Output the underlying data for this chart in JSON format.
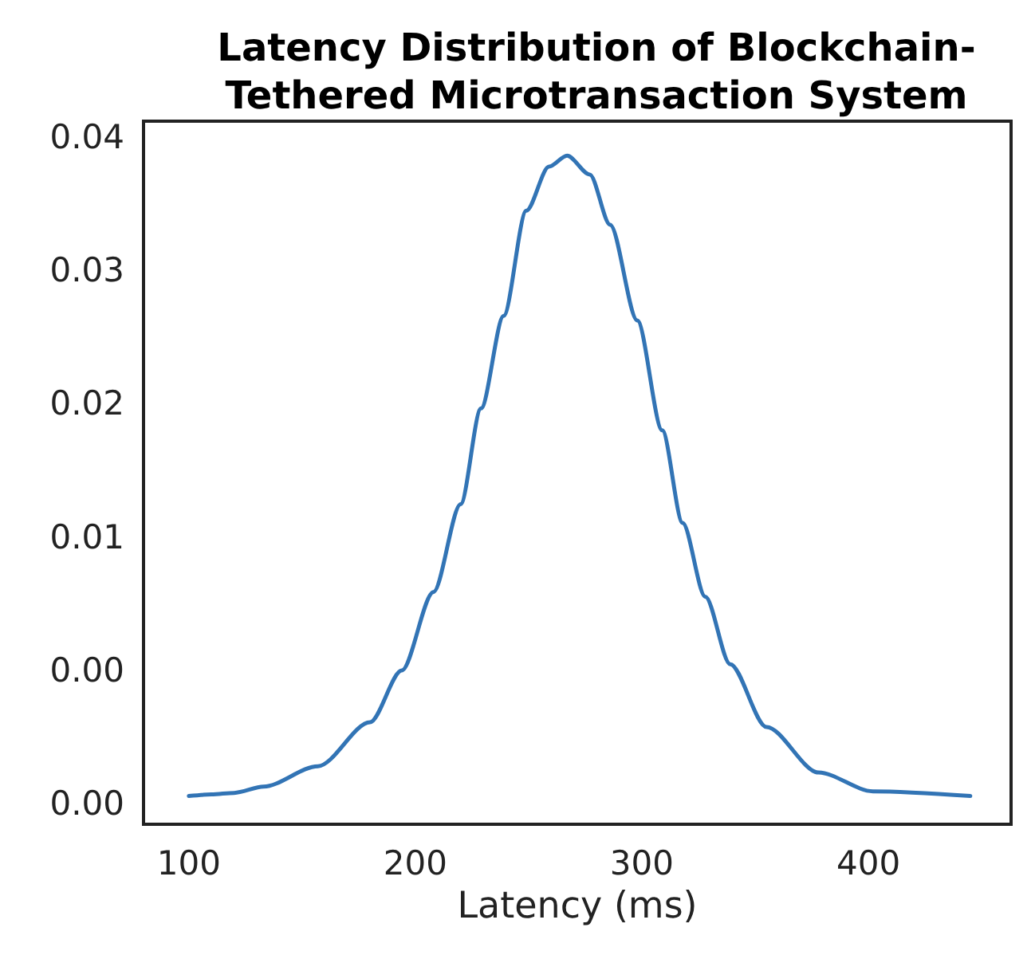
{
  "chart_data": {
    "type": "line",
    "title": "Latency Distribution of Blockchain-\nTethered Microtransaction System",
    "xlabel": "Latency (ms)",
    "x": [
      100,
      110,
      120,
      133,
      157,
      180,
      194,
      208,
      220,
      229,
      239,
      249,
      259,
      267,
      277,
      286,
      298,
      309,
      318,
      328,
      339,
      355,
      378,
      402,
      445
    ],
    "series": [
      {
        "color": "#3274b5",
        "values": [
          -0.0035,
          -0.0034,
          -0.0033,
          -0.0029,
          -0.0016,
          0.0012,
          0.0045,
          0.0095,
          0.0151,
          0.0212,
          0.0271,
          0.0338,
          0.0366,
          0.0373,
          0.0361,
          0.0329,
          0.0268,
          0.0198,
          0.0139,
          0.0092,
          0.0049,
          0.0009,
          -0.002,
          -0.0032,
          -0.0035
        ]
      }
    ],
    "xlim": [
      80,
      463
    ],
    "xticks": [
      100,
      200,
      300,
      400
    ],
    "ylim": [
      -0.0053,
      0.0395
    ],
    "yticks": [
      {
        "value": -0.004,
        "label": "0.00"
      },
      {
        "value": 0.0045,
        "label": "0.00"
      },
      {
        "value": 0.013,
        "label": "0.01"
      },
      {
        "value": 0.0215,
        "label": "0.02"
      },
      {
        "value": 0.03,
        "label": "0.03"
      },
      {
        "value": 0.0385,
        "label": "0.04"
      }
    ],
    "grid": false,
    "marker": "none",
    "line_style": "solid"
  }
}
